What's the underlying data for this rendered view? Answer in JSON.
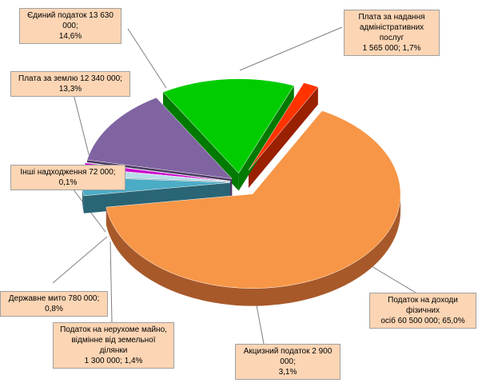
{
  "chart_data": {
    "type": "pie",
    "style": "3d-exploded",
    "slices": [
      {
        "label": "Податок на доходи фізичних осіб",
        "value": 60500000,
        "percent": 65.0,
        "value_text": "60 500 000",
        "percent_text": "65,0%",
        "color": "#f79646",
        "side": "#a8592a"
      },
      {
        "label": "Акцизний податок",
        "value": 2900000,
        "percent": 3.1,
        "value_text": "2 900 000",
        "percent_text": "3,1%",
        "color": "#4bacc6",
        "side": "#2a6575"
      },
      {
        "label": "Податок на нерухоме майно, відмінне від земельної ділянки",
        "value": 1300000,
        "percent": 1.4,
        "value_text": "1 300 000",
        "percent_text": "1,4%",
        "color": "#b7dde8",
        "side": "#6b8f99"
      },
      {
        "label": "Державне мито",
        "value": 780000,
        "percent": 0.8,
        "value_text": "780 000",
        "percent_text": "0,8%",
        "color": "#cc00cc",
        "side": "#7a007a"
      },
      {
        "label": "Інші надходження",
        "value": 72000,
        "percent": 0.1,
        "value_text": "72 000",
        "percent_text": "0,1%",
        "color": "#1f3864",
        "side": "#0f1c32"
      },
      {
        "label": "Плата за землю",
        "value": 12340000,
        "percent": 13.3,
        "value_text": "12 340 000",
        "percent_text": "13,3%",
        "color": "#8064a2",
        "side": "#4a3a60"
      },
      {
        "label": "Єдиний податок",
        "value": 13630000,
        "percent": 14.6,
        "value_text": "13 630 000",
        "percent_text": "14,6%",
        "color": "#00cc00",
        "side": "#007a00"
      },
      {
        "label": "Плата за надання адміністративних послуг",
        "value": 1565000,
        "percent": 1.7,
        "value_text": "1 565 000",
        "percent_text": "1,7%",
        "color": "#ff3300",
        "side": "#992000"
      }
    ],
    "labels": [
      {
        "lines": [
          "Податок на доходи фізичних",
          "осіб 60 500 000; 65,0%"
        ]
      },
      {
        "lines": [
          "Акцизний податок 2 900 000;",
          "3,1%"
        ]
      },
      {
        "lines": [
          "Податок на нерухоме майно,",
          "відмінне від земельної ділянки",
          "1 300 000; 1,4%"
        ]
      },
      {
        "lines": [
          "Державне мито 780 000; 0,8%"
        ]
      },
      {
        "lines": [
          "Інші надходження 72 000; 0,1%"
        ]
      },
      {
        "lines": [
          "Плата за землю 12 340 000; 13,3%"
        ]
      },
      {
        "lines": [
          "Єдиний податок 13 630 000;",
          "14,6%"
        ]
      },
      {
        "lines": [
          "Плата за надання",
          "адміністративних послуг",
          "1 565 000; 1,7%"
        ]
      }
    ]
  }
}
